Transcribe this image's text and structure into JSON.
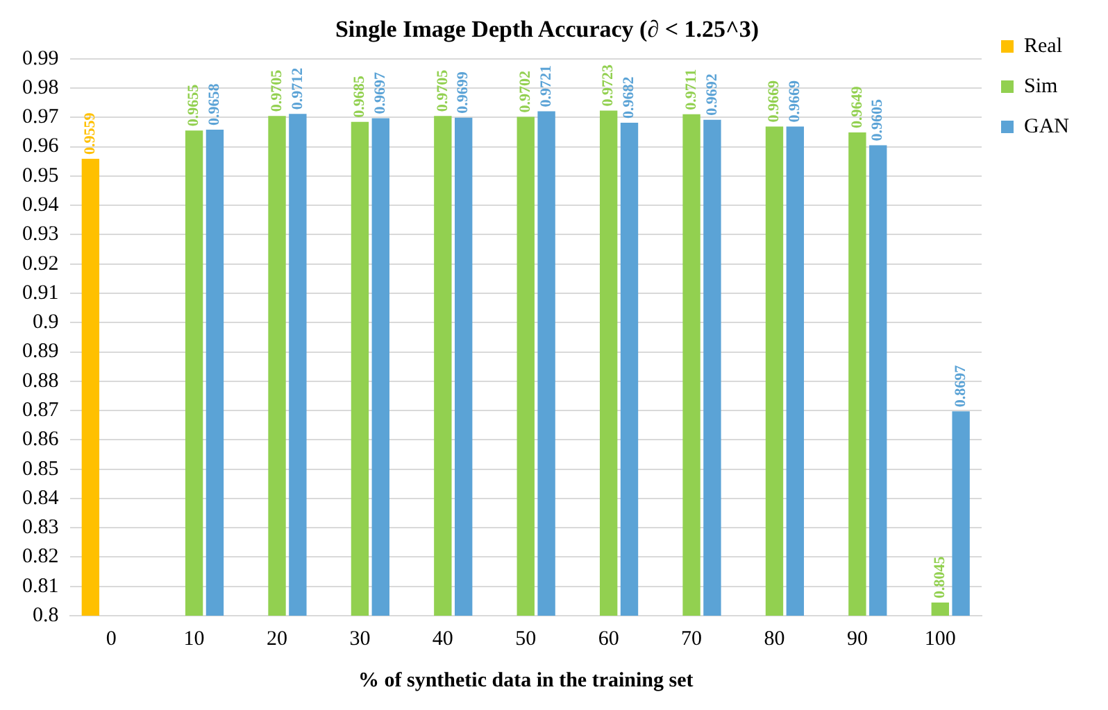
{
  "chart_data": {
    "type": "bar",
    "title": "Single Image Depth Accuracy (∂ < 1.25^3)",
    "xlabel": "% of synthetic data in the training set",
    "categories": [
      "0",
      "10",
      "20",
      "30",
      "40",
      "50",
      "60",
      "70",
      "80",
      "90",
      "100"
    ],
    "series": [
      {
        "name": "Real",
        "color": "#ffc000",
        "values": [
          0.9559,
          null,
          null,
          null,
          null,
          null,
          null,
          null,
          null,
          null,
          null
        ],
        "value_labels": [
          "0.9559",
          null,
          null,
          null,
          null,
          null,
          null,
          null,
          null,
          null,
          null
        ]
      },
      {
        "name": "Sim",
        "color": "#92d050",
        "values": [
          null,
          0.9655,
          0.9705,
          0.9685,
          0.9705,
          0.9702,
          0.9723,
          0.9711,
          0.9669,
          0.9649,
          0.8045
        ],
        "value_labels": [
          null,
          "0.9655",
          "0.9705",
          "0.9685",
          "0.9705",
          "0.9702",
          "0.9723",
          "0.9711",
          "0.9669",
          "0.9649",
          "0.8045"
        ]
      },
      {
        "name": "GAN",
        "color": "#5ba3d6",
        "values": [
          null,
          0.9658,
          0.9712,
          0.9697,
          0.9699,
          0.9721,
          0.9682,
          0.9692,
          0.9669,
          0.9605,
          0.8697
        ],
        "value_labels": [
          null,
          "0.9658",
          "0.9712",
          "0.9697",
          "0.9699",
          "0.9721",
          "0.9682",
          "0.9692",
          "0.9669",
          "0.9605",
          "0.8697"
        ]
      }
    ],
    "ylim": [
      0.8,
      0.99
    ],
    "yticks": [
      0.8,
      0.81,
      0.82,
      0.83,
      0.84,
      0.85,
      0.86,
      0.87,
      0.88,
      0.89,
      0.9,
      0.91,
      0.92,
      0.93,
      0.94,
      0.95,
      0.96,
      0.97,
      0.98,
      0.99
    ],
    "grid": "y",
    "legend": "right"
  }
}
